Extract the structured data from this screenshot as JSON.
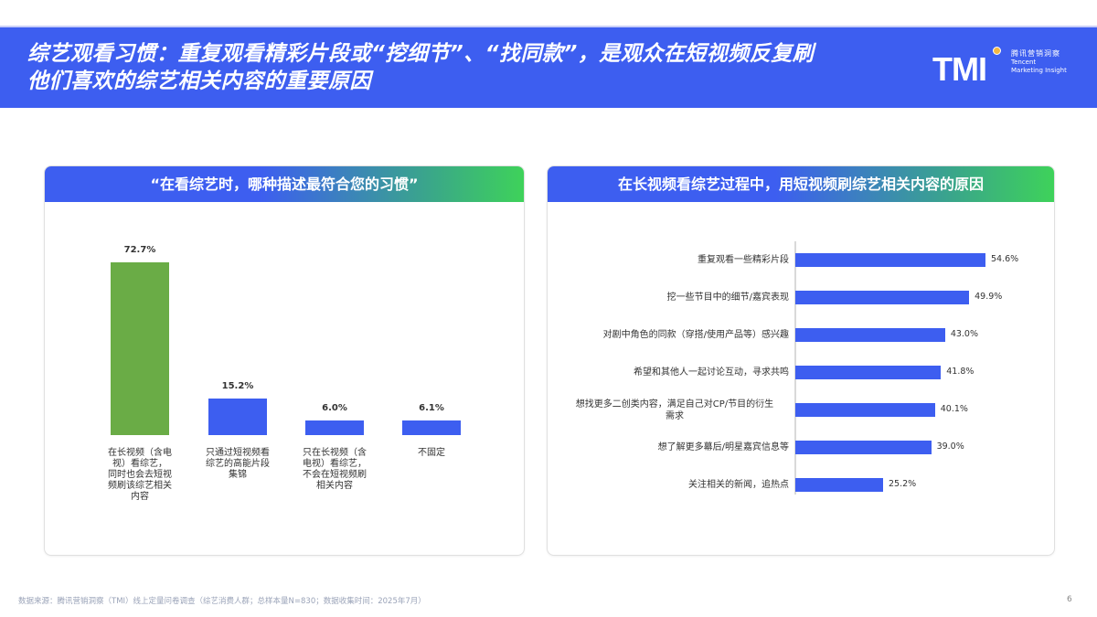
{
  "header": {
    "title_line1": "综艺观看习惯：重复观看精彩片段或“挖细节”、“找同款”，是观众在短视频反复刷",
    "title_line2": "他们喜欢的综艺相关内容的重要原因",
    "logo": {
      "mark": "TMI",
      "name_cn": "腾讯营销洞察",
      "name_en_1": "Tencent",
      "name_en_2": "Marketing Insight"
    }
  },
  "colors": {
    "header_bg": "#3d5ef0",
    "bar_blue": "#3d5ef0",
    "bar_green": "#6aac46",
    "logo_dot": "#f3b742"
  },
  "left_panel": {
    "title": "“在看综艺时，哪种描述最符合您的习惯”"
  },
  "right_panel": {
    "title": "在长视频看综艺过程中，用短视频刷综艺相关内容的原因"
  },
  "chart_data": [
    {
      "type": "bar",
      "orientation": "vertical",
      "title": "“在看综艺时，哪种描述最符合您的习惯”",
      "categories": [
        "在长视频（含电视）看综艺，同时也会去短视频刷该综艺相关内容",
        "只通过短视频看综艺的高能片段集锦",
        "只在长视频（含电视）看综艺，不会在短视频刷相关内容",
        "不固定"
      ],
      "category_lines": [
        [
          "在长视频（含电",
          "视）看综艺，",
          "同时也会去短视",
          "频刷该综艺相关",
          "内容"
        ],
        [
          "只通过短视频看",
          "综艺的高能片段",
          "集锦"
        ],
        [
          "只在长视频（含",
          "电视）看综艺，",
          "不会在短视频刷",
          "相关内容"
        ],
        [
          "不固定"
        ]
      ],
      "values": [
        72.7,
        15.2,
        6.0,
        6.1
      ],
      "labels": [
        "72.7%",
        "15.2%",
        "6.0%",
        "6.1%"
      ],
      "colors": [
        "#6aac46",
        "#3d5ef0",
        "#3d5ef0",
        "#3d5ef0"
      ],
      "unit": "%",
      "xlabel": "",
      "ylabel": "",
      "grid": false,
      "legend": false
    },
    {
      "type": "bar",
      "orientation": "horizontal",
      "title": "在长视频看综艺过程中，用短视频刷综艺相关内容的原因",
      "categories": [
        "重复观看一些精彩片段",
        "挖一些节目中的细节/嘉宾表现",
        "对剧中角色的同款（穿搭/使用产品等）感兴趣",
        "希望和其他人一起讨论互动，寻求共鸣",
        "想找更多二创类内容，满足自己对CP/节目的衍生需求",
        "想了解更多幕后/明星嘉宾信息等",
        "关注相关的新闻，追热点"
      ],
      "category_lines": [
        [
          "重复观看一些精彩片段"
        ],
        [
          "挖一些节目中的细节/嘉宾表现"
        ],
        [
          "对剧中角色的同款（穿搭/使用产品等）感兴趣"
        ],
        [
          "希望和其他人一起讨论互动，寻求共鸣"
        ],
        [
          "想找更多二创类内容，满足自己对CP/节目的衍生",
          "需求"
        ],
        [
          "想了解更多幕后/明星嘉宾信息等"
        ],
        [
          "关注相关的新闻，追热点"
        ]
      ],
      "values": [
        54.6,
        49.9,
        43.0,
        41.8,
        40.1,
        39.0,
        25.2
      ],
      "labels": [
        "54.6%",
        "49.9%",
        "43.0%",
        "41.8%",
        "40.1%",
        "39.0%",
        "25.2%"
      ],
      "colors": [
        "#3d5ef0"
      ],
      "unit": "%",
      "xlabel": "",
      "ylabel": "",
      "grid": false,
      "legend": false
    }
  ],
  "footer": {
    "source": "数据来源：腾讯营销洞察（TMI）线上定量问卷调查（综艺消费人群；总样本量N=830；数据收集时间：2025年7月）",
    "page_number": "6"
  }
}
